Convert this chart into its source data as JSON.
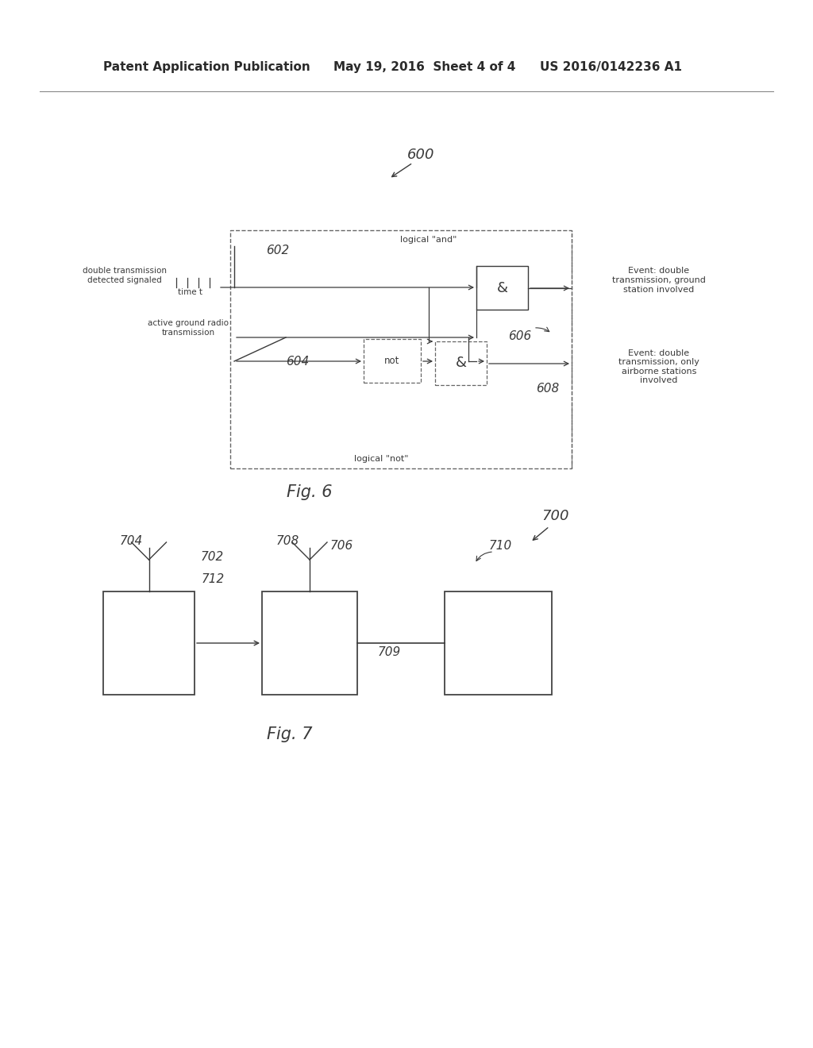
{
  "bg_color": "#ffffff",
  "header_left": "Patent Application Publication",
  "header_mid": "May 19, 2016  Sheet 4 of 4",
  "header_right": "US 2016/0142236 A1",
  "fig6_label": "Fig. 6",
  "fig7_label": "Fig. 7",
  "fig6_number": "600",
  "fig6_602": "602",
  "fig6_604": "604",
  "fig6_606": "606",
  "fig6_608": "608",
  "fig7_number": "700",
  "fig7_702": "702",
  "fig7_704": "704",
  "fig7_706": "706",
  "fig7_708": "708",
  "fig7_709": "709",
  "fig7_710": "710",
  "fig7_712": "712",
  "label_double_tx": "double transmission\ndetected signaled",
  "label_time_t": "time t",
  "label_active_ground": "active ground radio\ntransmission",
  "label_logical_and": "logical \"and\"",
  "label_logical_not": "logical \"not\"",
  "label_event_ground": "Event: double\ntransmission, ground\nstation involved",
  "label_event_airborne": "Event: double\ntransmission, only\nairborne stations\ninvolved",
  "text_color": "#2a2a2a",
  "line_color": "#3a3a3a",
  "dashed_color": "#666666"
}
